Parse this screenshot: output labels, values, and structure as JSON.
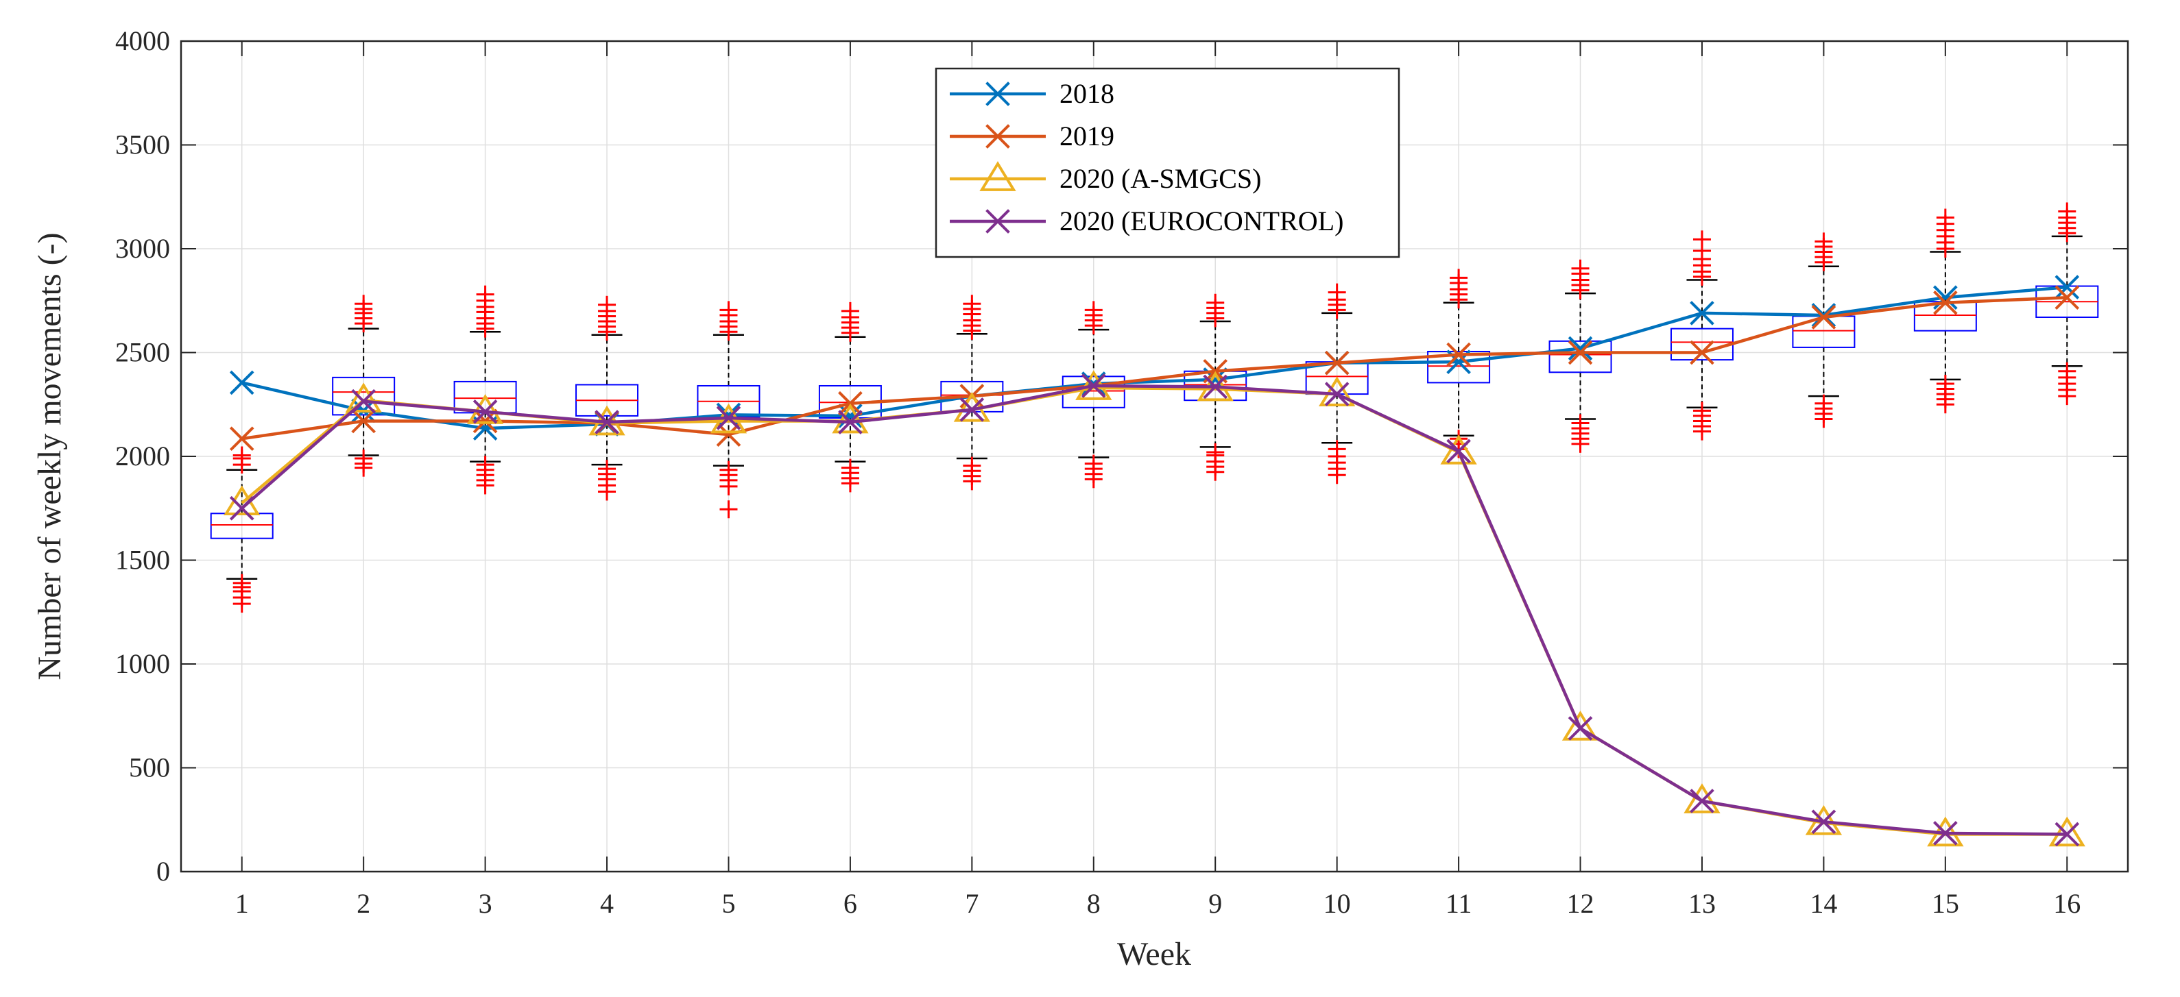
{
  "chart_data": {
    "type": "line",
    "title": "",
    "xlabel": "Week",
    "ylabel": "Number of weekly movements (-)",
    "xlim": [
      0.5,
      16.5
    ],
    "ylim": [
      0,
      4000
    ],
    "xticks": [
      1,
      2,
      3,
      4,
      5,
      6,
      7,
      8,
      9,
      10,
      11,
      12,
      13,
      14,
      15,
      16
    ],
    "yticks": [
      0,
      500,
      1000,
      1500,
      2000,
      2500,
      3000,
      3500,
      4000
    ],
    "grid": true,
    "legend_position": "top-center",
    "x": [
      1,
      2,
      3,
      4,
      5,
      6,
      7,
      8,
      9,
      10,
      11,
      12,
      13,
      14,
      15,
      16
    ],
    "series": [
      {
        "name": "2018",
        "color": "#0072BD",
        "marker": "x",
        "values": [
          2355,
          2220,
          2135,
          2155,
          2200,
          2195,
          2290,
          2350,
          2370,
          2450,
          2455,
          2520,
          2690,
          2680,
          2765,
          2815
        ]
      },
      {
        "name": "2019",
        "color": "#D95319",
        "marker": "x",
        "values": [
          2085,
          2170,
          2170,
          2160,
          2105,
          2255,
          2290,
          2340,
          2410,
          2450,
          2490,
          2500,
          2500,
          2670,
          2740,
          2765
        ]
      },
      {
        "name": "2020 (A-SMGCS)",
        "color": "#EDB120",
        "marker": "triangle",
        "values": [
          1775,
          2270,
          2215,
          2160,
          2170,
          2170,
          2225,
          2330,
          2325,
          2300,
          2020,
          690,
          340,
          235,
          180,
          180
        ]
      },
      {
        "name": "2020 (EUROCONTROL)",
        "color": "#7E2F8E",
        "marker": "x",
        "values": [
          1750,
          2265,
          2215,
          2165,
          2185,
          2165,
          2225,
          2340,
          2335,
          2300,
          2025,
          690,
          340,
          240,
          185,
          180
        ]
      }
    ],
    "boxplots": [
      {
        "week": 1,
        "q1": 1605,
        "median": 1670,
        "q3": 1725,
        "whisker_low": 1410,
        "whisker_high": 1935,
        "outliers": [
          1290,
          1320,
          1350,
          1370,
          1390,
          1960,
          1990,
          2005
        ]
      },
      {
        "week": 2,
        "q1": 2200,
        "median": 2310,
        "q3": 2380,
        "whisker_low": 2005,
        "whisker_high": 2615,
        "outliers": [
          1945,
          1965,
          1990,
          2640,
          2665,
          2690,
          2710,
          2735
        ]
      },
      {
        "week": 3,
        "q1": 2210,
        "median": 2280,
        "q3": 2360,
        "whisker_low": 1975,
        "whisker_high": 2600,
        "outliers": [
          1860,
          1885,
          1910,
          1935,
          1960,
          2615,
          2640,
          2665,
          2695,
          2720,
          2750,
          2780
        ]
      },
      {
        "week": 4,
        "q1": 2195,
        "median": 2270,
        "q3": 2345,
        "whisker_low": 1960,
        "whisker_high": 2585,
        "outliers": [
          1830,
          1860,
          1890,
          1915,
          1940,
          2600,
          2625,
          2650,
          2675,
          2700,
          2730
        ]
      },
      {
        "week": 5,
        "q1": 2190,
        "median": 2265,
        "q3": 2340,
        "whisker_low": 1955,
        "whisker_high": 2585,
        "outliers": [
          1745,
          1855,
          1885,
          1910,
          1935,
          2600,
          2625,
          2650,
          2680,
          2705
        ]
      },
      {
        "week": 6,
        "q1": 2185,
        "median": 2260,
        "q3": 2340,
        "whisker_low": 1975,
        "whisker_high": 2575,
        "outliers": [
          1870,
          1895,
          1920,
          1945,
          2595,
          2620,
          2645,
          2670,
          2700
        ]
      },
      {
        "week": 7,
        "q1": 2215,
        "median": 2295,
        "q3": 2360,
        "whisker_low": 1990,
        "whisker_high": 2590,
        "outliers": [
          1880,
          1905,
          1930,
          1955,
          2605,
          2630,
          2655,
          2685,
          2710,
          2735
        ]
      },
      {
        "week": 8,
        "q1": 2235,
        "median": 2315,
        "q3": 2385,
        "whisker_low": 1995,
        "whisker_high": 2610,
        "outliers": [
          1890,
          1915,
          1940,
          1965,
          2630,
          2655,
          2680,
          2705
        ]
      },
      {
        "week": 9,
        "q1": 2270,
        "median": 2345,
        "q3": 2410,
        "whisker_low": 2045,
        "whisker_high": 2650,
        "outliers": [
          1925,
          1950,
          1975,
          2005,
          2020,
          2665,
          2690,
          2715,
          2740
        ]
      },
      {
        "week": 10,
        "q1": 2300,
        "median": 2385,
        "q3": 2455,
        "whisker_low": 2065,
        "whisker_high": 2690,
        "outliers": [
          1910,
          1940,
          1970,
          2000,
          2035,
          2705,
          2730,
          2755,
          2790
        ]
      },
      {
        "week": 11,
        "q1": 2355,
        "median": 2435,
        "q3": 2505,
        "whisker_low": 2100,
        "whisker_high": 2740,
        "outliers": [
          2035,
          2060,
          2085,
          2755,
          2780,
          2805,
          2835,
          2860
        ]
      },
      {
        "week": 12,
        "q1": 2405,
        "median": 2490,
        "q3": 2555,
        "whisker_low": 2180,
        "whisker_high": 2785,
        "outliers": [
          2060,
          2085,
          2110,
          2135,
          2160,
          2800,
          2825,
          2850,
          2880,
          2905
        ]
      },
      {
        "week": 13,
        "q1": 2465,
        "median": 2550,
        "q3": 2615,
        "whisker_low": 2235,
        "whisker_high": 2850,
        "outliers": [
          2120,
          2145,
          2170,
          2195,
          2220,
          2865,
          2890,
          2920,
          2950,
          2990,
          3045
        ]
      },
      {
        "week": 14,
        "q1": 2525,
        "median": 2605,
        "q3": 2675,
        "whisker_low": 2290,
        "whisker_high": 2915,
        "outliers": [
          2180,
          2205,
          2230,
          2255,
          2935,
          2960,
          2985,
          3010,
          3035
        ]
      },
      {
        "week": 15,
        "q1": 2605,
        "median": 2680,
        "q3": 2745,
        "whisker_low": 2370,
        "whisker_high": 2985,
        "outliers": [
          2250,
          2275,
          2300,
          2325,
          2350,
          3000,
          3030,
          3060,
          3090,
          3120,
          3150
        ]
      },
      {
        "week": 16,
        "q1": 2670,
        "median": 2745,
        "q3": 2820,
        "whisker_low": 2435,
        "whisker_high": 3060,
        "outliers": [
          2290,
          2320,
          2350,
          2380,
          2410,
          3075,
          3100,
          3125,
          3150,
          3180
        ]
      }
    ],
    "boxplot_style": {
      "box_color": "#0000FF",
      "median_color": "#FF0000",
      "whisker_color": "#000000",
      "outlier_color": "#FF0000"
    }
  }
}
